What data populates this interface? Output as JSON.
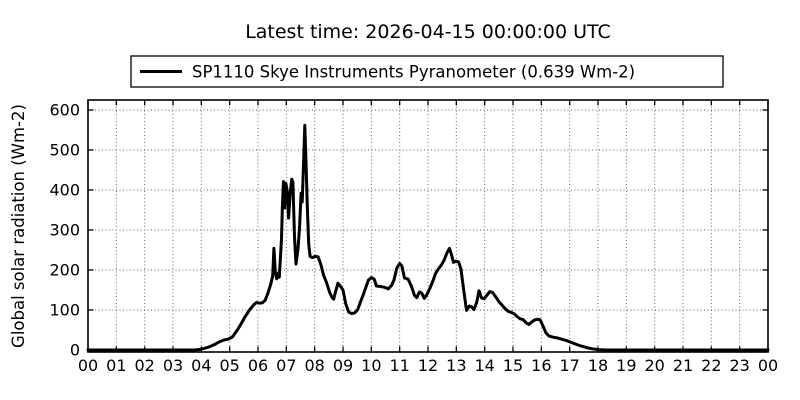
{
  "chart_data": {
    "type": "line",
    "title": "Latest time: 2026-04-15 00:00:00 UTC",
    "legend": {
      "label": "SP1110 Skye Instruments Pyranometer (0.639 Wm-2)",
      "position": "upper center, above axes"
    },
    "xlabel": "",
    "ylabel": "Global solar radiation (Wm-2)",
    "x_tick_labels": [
      "00",
      "01",
      "02",
      "03",
      "04",
      "05",
      "06",
      "07",
      "08",
      "09",
      "10",
      "11",
      "12",
      "13",
      "14",
      "15",
      "16",
      "17",
      "18",
      "19",
      "20",
      "21",
      "22",
      "23",
      "00"
    ],
    "y_ticks": [
      0,
      100,
      200,
      300,
      400,
      500,
      600
    ],
    "xlim": [
      0,
      24
    ],
    "ylim": [
      -5,
      625
    ],
    "grid": true,
    "grid_style": "dotted",
    "colors": {
      "line": "#000000",
      "grid": "#666666",
      "frame": "#000000",
      "background": "#ffffff",
      "text": "#000000"
    },
    "series": [
      {
        "name": "SP1110 Skye Instruments Pyranometer",
        "latest_value_wm2": 0.639,
        "points": [
          [
            0,
            0
          ],
          [
            0.25,
            0
          ],
          [
            0.5,
            0
          ],
          [
            0.75,
            0
          ],
          [
            1,
            0
          ],
          [
            1.25,
            0
          ],
          [
            1.5,
            0
          ],
          [
            1.75,
            0
          ],
          [
            2,
            0
          ],
          [
            2.25,
            0
          ],
          [
            2.5,
            0
          ],
          [
            2.75,
            0
          ],
          [
            3,
            0
          ],
          [
            3.25,
            0
          ],
          [
            3.5,
            0
          ],
          [
            3.75,
            0
          ],
          [
            3.9,
            1
          ],
          [
            4.05,
            3
          ],
          [
            4.2,
            6
          ],
          [
            4.35,
            10
          ],
          [
            4.5,
            15
          ],
          [
            4.65,
            21
          ],
          [
            4.8,
            25
          ],
          [
            4.95,
            27
          ],
          [
            5.1,
            33
          ],
          [
            5.25,
            48
          ],
          [
            5.4,
            65
          ],
          [
            5.55,
            84
          ],
          [
            5.7,
            100
          ],
          [
            5.85,
            113
          ],
          [
            5.95,
            119
          ],
          [
            6.05,
            117
          ],
          [
            6.15,
            118
          ],
          [
            6.25,
            124
          ],
          [
            6.35,
            142
          ],
          [
            6.45,
            165
          ],
          [
            6.52,
            185
          ],
          [
            6.56,
            254
          ],
          [
            6.61,
            195
          ],
          [
            6.66,
            178
          ],
          [
            6.71,
            192
          ],
          [
            6.75,
            182
          ],
          [
            6.79,
            230
          ],
          [
            6.83,
            278
          ],
          [
            6.86,
            360
          ],
          [
            6.9,
            421
          ],
          [
            6.94,
            355
          ],
          [
            6.98,
            417
          ],
          [
            7.03,
            398
          ],
          [
            7.08,
            330
          ],
          [
            7.14,
            395
          ],
          [
            7.19,
            427
          ],
          [
            7.23,
            420
          ],
          [
            7.29,
            283
          ],
          [
            7.34,
            215
          ],
          [
            7.41,
            252
          ],
          [
            7.47,
            310
          ],
          [
            7.52,
            392
          ],
          [
            7.56,
            370
          ],
          [
            7.61,
            470
          ],
          [
            7.65,
            562
          ],
          [
            7.69,
            480
          ],
          [
            7.74,
            360
          ],
          [
            7.79,
            265
          ],
          [
            7.84,
            234
          ],
          [
            7.92,
            231
          ],
          [
            8.02,
            234
          ],
          [
            8.12,
            233
          ],
          [
            8.22,
            213
          ],
          [
            8.32,
            186
          ],
          [
            8.42,
            168
          ],
          [
            8.52,
            146
          ],
          [
            8.6,
            133
          ],
          [
            8.67,
            127
          ],
          [
            8.74,
            146
          ],
          [
            8.82,
            167
          ],
          [
            8.9,
            160
          ],
          [
            9.0,
            150
          ],
          [
            9.1,
            115
          ],
          [
            9.2,
            95
          ],
          [
            9.3,
            91
          ],
          [
            9.42,
            93
          ],
          [
            9.52,
            101
          ],
          [
            9.62,
            121
          ],
          [
            9.72,
            139
          ],
          [
            9.82,
            159
          ],
          [
            9.9,
            175
          ],
          [
            10.0,
            181
          ],
          [
            10.1,
            177
          ],
          [
            10.18,
            160
          ],
          [
            10.3,
            159
          ],
          [
            10.45,
            157
          ],
          [
            10.6,
            153
          ],
          [
            10.72,
            162
          ],
          [
            10.8,
            175
          ],
          [
            10.9,
            205
          ],
          [
            11.0,
            216
          ],
          [
            11.08,
            210
          ],
          [
            11.17,
            180
          ],
          [
            11.3,
            177
          ],
          [
            11.42,
            158
          ],
          [
            11.52,
            137
          ],
          [
            11.6,
            131
          ],
          [
            11.7,
            145
          ],
          [
            11.78,
            142
          ],
          [
            11.87,
            129
          ],
          [
            11.97,
            140
          ],
          [
            12.07,
            155
          ],
          [
            12.17,
            172
          ],
          [
            12.27,
            192
          ],
          [
            12.37,
            203
          ],
          [
            12.47,
            212
          ],
          [
            12.57,
            225
          ],
          [
            12.67,
            243
          ],
          [
            12.76,
            254
          ],
          [
            12.83,
            238
          ],
          [
            12.9,
            219
          ],
          [
            12.98,
            222
          ],
          [
            13.08,
            220
          ],
          [
            13.16,
            203
          ],
          [
            13.26,
            150
          ],
          [
            13.36,
            99
          ],
          [
            13.46,
            110
          ],
          [
            13.54,
            108
          ],
          [
            13.62,
            101
          ],
          [
            13.72,
            119
          ],
          [
            13.8,
            148
          ],
          [
            13.89,
            130
          ],
          [
            13.98,
            128
          ],
          [
            14.08,
            137
          ],
          [
            14.18,
            146
          ],
          [
            14.28,
            144
          ],
          [
            14.4,
            132
          ],
          [
            14.5,
            121
          ],
          [
            14.6,
            113
          ],
          [
            14.7,
            105
          ],
          [
            14.82,
            97
          ],
          [
            14.94,
            94
          ],
          [
            15.05,
            90
          ],
          [
            15.15,
            83
          ],
          [
            15.25,
            78
          ],
          [
            15.36,
            76
          ],
          [
            15.46,
            68
          ],
          [
            15.56,
            64
          ],
          [
            15.66,
            70
          ],
          [
            15.76,
            75
          ],
          [
            15.86,
            77
          ],
          [
            15.96,
            75
          ],
          [
            16.06,
            60
          ],
          [
            16.16,
            43
          ],
          [
            16.27,
            35
          ],
          [
            16.42,
            32
          ],
          [
            16.57,
            30
          ],
          [
            16.72,
            27
          ],
          [
            16.87,
            24
          ],
          [
            17.02,
            20
          ],
          [
            17.2,
            15
          ],
          [
            17.4,
            10
          ],
          [
            17.6,
            6
          ],
          [
            17.8,
            3
          ],
          [
            18.0,
            1
          ],
          [
            18.3,
            0
          ],
          [
            18.6,
            0
          ],
          [
            19,
            0
          ],
          [
            19.5,
            0
          ],
          [
            20,
            0
          ],
          [
            20.5,
            0
          ],
          [
            21,
            0
          ],
          [
            21.5,
            0
          ],
          [
            22,
            0
          ],
          [
            22.5,
            0
          ],
          [
            23,
            0
          ],
          [
            23.5,
            0
          ],
          [
            24,
            0
          ]
        ]
      }
    ]
  }
}
